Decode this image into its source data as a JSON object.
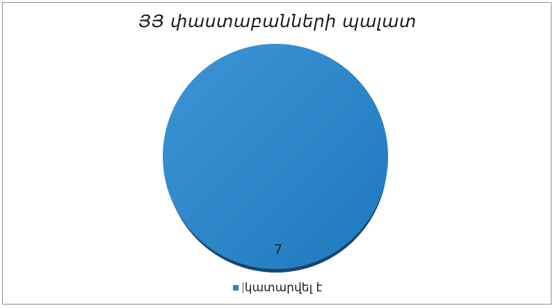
{
  "chart_data": {
    "type": "pie",
    "title": "ՅՅ փաստաբանների պալատ",
    "categories": [
      "կատարվել է"
    ],
    "values": [
      7
    ],
    "data_labels": [
      "7"
    ],
    "colors": [
      "#2a86c8"
    ],
    "legend": "bottom"
  }
}
